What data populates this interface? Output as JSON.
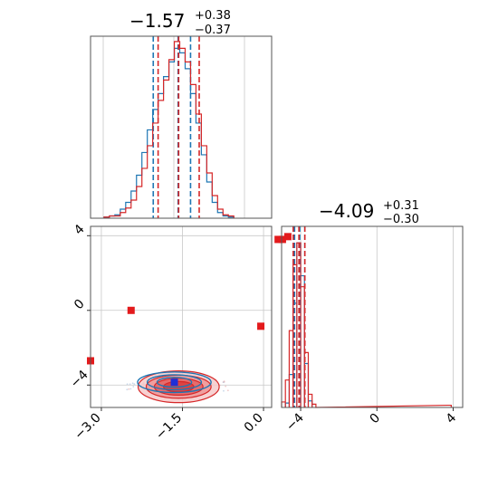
{
  "chart_data": [
    {
      "type": "histogram",
      "panel": "marginal-x",
      "title": {
        "value": "−1.57",
        "upper": "+0.38",
        "lower": "−0.37"
      },
      "xlim": [
        -3.2,
        0.15
      ],
      "grid": true,
      "series": [
        {
          "color": "#1f77b4",
          "quantiles": [
            -2.04,
            -1.58,
            -1.35
          ],
          "x": [
            -2.9,
            -2.8,
            -2.7,
            -2.6,
            -2.5,
            -2.4,
            -2.3,
            -2.2,
            -2.1,
            -2.0,
            -1.9,
            -1.8,
            -1.7,
            -1.6,
            -1.5,
            -1.4,
            -1.3,
            -1.2,
            -1.1,
            -1.0,
            -0.9,
            -0.8,
            -0.7,
            -0.6
          ],
          "y": [
            1,
            2,
            3,
            8,
            14,
            24,
            38,
            58,
            78,
            96,
            110,
            125,
            138,
            150,
            146,
            132,
            110,
            84,
            56,
            32,
            14,
            5,
            2,
            1
          ]
        },
        {
          "color": "#d62728",
          "quantiles": [
            -1.95,
            -1.57,
            -1.19
          ],
          "x": [
            -2.9,
            -2.8,
            -2.7,
            -2.6,
            -2.5,
            -2.4,
            -2.3,
            -2.2,
            -2.1,
            -2.0,
            -1.9,
            -1.8,
            -1.7,
            -1.6,
            -1.5,
            -1.4,
            -1.3,
            -1.2,
            -1.1,
            -1.0,
            -0.9,
            -0.8,
            -0.7,
            -0.6
          ],
          "y": [
            1,
            2,
            2,
            5,
            9,
            16,
            28,
            44,
            64,
            84,
            104,
            122,
            140,
            156,
            150,
            138,
            118,
            92,
            64,
            40,
            20,
            8,
            3,
            2
          ]
        }
      ]
    },
    {
      "type": "histogram",
      "panel": "marginal-y",
      "title": {
        "value": "−4.09",
        "upper": "+0.31",
        "lower": "−0.30"
      },
      "xlim": [
        -5.0,
        4.5
      ],
      "xticks": [
        -4,
        0,
        4
      ],
      "xticklabels": [
        "−4",
        "0",
        "4"
      ],
      "grid": true,
      "series": [
        {
          "color": "#1f77b4",
          "quantiles": [
            -4.32,
            -4.05,
            -3.78
          ],
          "x": [
            -4.7,
            -4.5,
            -4.3,
            -4.1,
            -3.9,
            -3.7,
            -3.5
          ],
          "y": [
            4,
            30,
            95,
            150,
            120,
            40,
            6
          ]
        },
        {
          "color": "#d62728",
          "quantiles": [
            -4.39,
            -4.09,
            -3.78
          ],
          "x": [
            -4.9,
            -4.7,
            -4.5,
            -4.3,
            -4.1,
            -3.9,
            -3.7,
            -3.5,
            -3.3,
            3.8
          ],
          "y": [
            5,
            25,
            70,
            130,
            150,
            110,
            50,
            12,
            3,
            2
          ]
        }
      ]
    },
    {
      "type": "contour-scatter",
      "panel": "joint",
      "xlim": [
        -3.2,
        0.15
      ],
      "ylim": [
        -5.2,
        4.5
      ],
      "xticks": [
        -3.0,
        -1.5,
        0.0
      ],
      "xticklabels": [
        "−3.0",
        "−1.5",
        "0.0"
      ],
      "yticks": [
        -4,
        0,
        4
      ],
      "yticklabels": [
        "−4",
        "0",
        "4"
      ],
      "grid": true,
      "center": {
        "x": -1.57,
        "y": -4.09
      },
      "red_points": [
        {
          "x": -2.45,
          "y": 0.0
        },
        {
          "x": -0.05,
          "y": -0.85
        },
        {
          "x": 0.27,
          "y": 3.8
        },
        {
          "x": 0.35,
          "y": 3.8
        },
        {
          "x": 0.45,
          "y": 3.95
        },
        {
          "x": -3.2,
          "y": -2.7
        }
      ],
      "red_contours": [
        {
          "rx": 0.75,
          "ry": 0.85
        },
        {
          "rx": 0.6,
          "ry": 0.62
        },
        {
          "rx": 0.45,
          "ry": 0.45
        },
        {
          "rx": 0.28,
          "ry": 0.28
        }
      ],
      "blue_contours": [
        {
          "rx": 0.68,
          "ry": 0.55
        },
        {
          "rx": 0.5,
          "ry": 0.4
        },
        {
          "rx": 0.32,
          "ry": 0.26
        }
      ],
      "blue_center": {
        "x": -1.65,
        "y": -3.85
      }
    }
  ]
}
